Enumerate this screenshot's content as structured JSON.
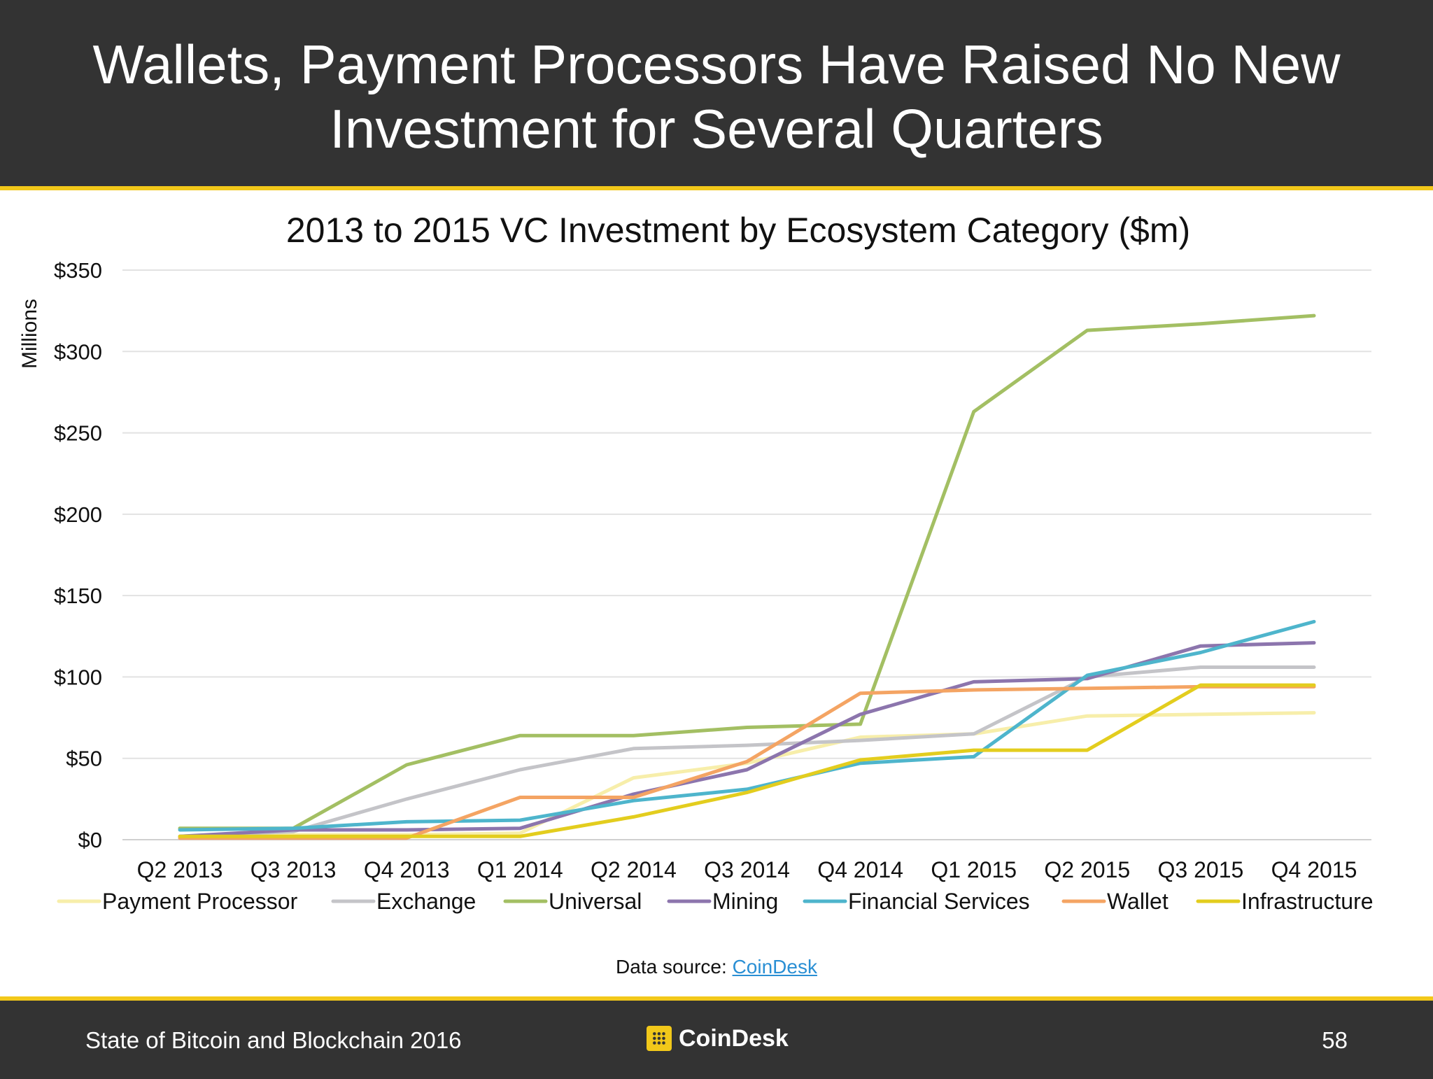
{
  "header": {
    "title_line1": "Wallets, Payment Processors Have Raised No New",
    "title_line2": "Investment for Several Quarters"
  },
  "chart_data": {
    "type": "line",
    "title": "2013 to 2015 VC Investment by Ecosystem Category ($m)",
    "ylabel": "Millions",
    "xlabel": "",
    "ylim": [
      0,
      350
    ],
    "yticks": [
      0,
      50,
      100,
      150,
      200,
      250,
      300,
      350
    ],
    "ytick_labels": [
      "$0",
      "$50",
      "$100",
      "$150",
      "$200",
      "$250",
      "$300",
      "$350"
    ],
    "grid": true,
    "legend_position": "bottom",
    "categories": [
      "Q2 2013",
      "Q3 2013",
      "Q4 2013",
      "Q1 2014",
      "Q2 2014",
      "Q3 2014",
      "Q4 2014",
      "Q1 2015",
      "Q2 2015",
      "Q3 2015",
      "Q4 2015"
    ],
    "series": [
      {
        "name": "Payment Processor",
        "color": "#f7eeaa",
        "values": [
          2,
          3,
          3,
          4,
          38,
          47,
          63,
          65,
          76,
          77,
          78
        ]
      },
      {
        "name": "Exchange",
        "color": "#c4c4c8",
        "values": [
          2,
          5,
          25,
          43,
          56,
          58,
          61,
          65,
          100,
          106,
          106
        ]
      },
      {
        "name": "Universal",
        "color": "#a3bf63",
        "values": [
          7,
          7,
          46,
          64,
          64,
          69,
          71,
          263,
          313,
          317,
          322
        ]
      },
      {
        "name": "Mining",
        "color": "#8c75ad",
        "values": [
          2,
          6,
          6,
          7,
          28,
          43,
          77,
          97,
          99,
          119,
          121
        ]
      },
      {
        "name": "Financial Services",
        "color": "#4eb5cc",
        "values": [
          6,
          7,
          11,
          12,
          24,
          31,
          47,
          51,
          101,
          115,
          134
        ]
      },
      {
        "name": "Wallet",
        "color": "#f4a463",
        "values": [
          1,
          1,
          1,
          26,
          26,
          48,
          90,
          92,
          93,
          94,
          94
        ]
      },
      {
        "name": "Infrastructure",
        "color": "#e3cd1e",
        "values": [
          2,
          2,
          2,
          2,
          14,
          29,
          49,
          55,
          55,
          95,
          95
        ]
      }
    ]
  },
  "source": {
    "label": "Data source: ",
    "link_text": "CoinDesk"
  },
  "footer": {
    "text": "State of Bitcoin and Blockchain 2016",
    "brand": "CoinDesk",
    "page_number": "58"
  }
}
